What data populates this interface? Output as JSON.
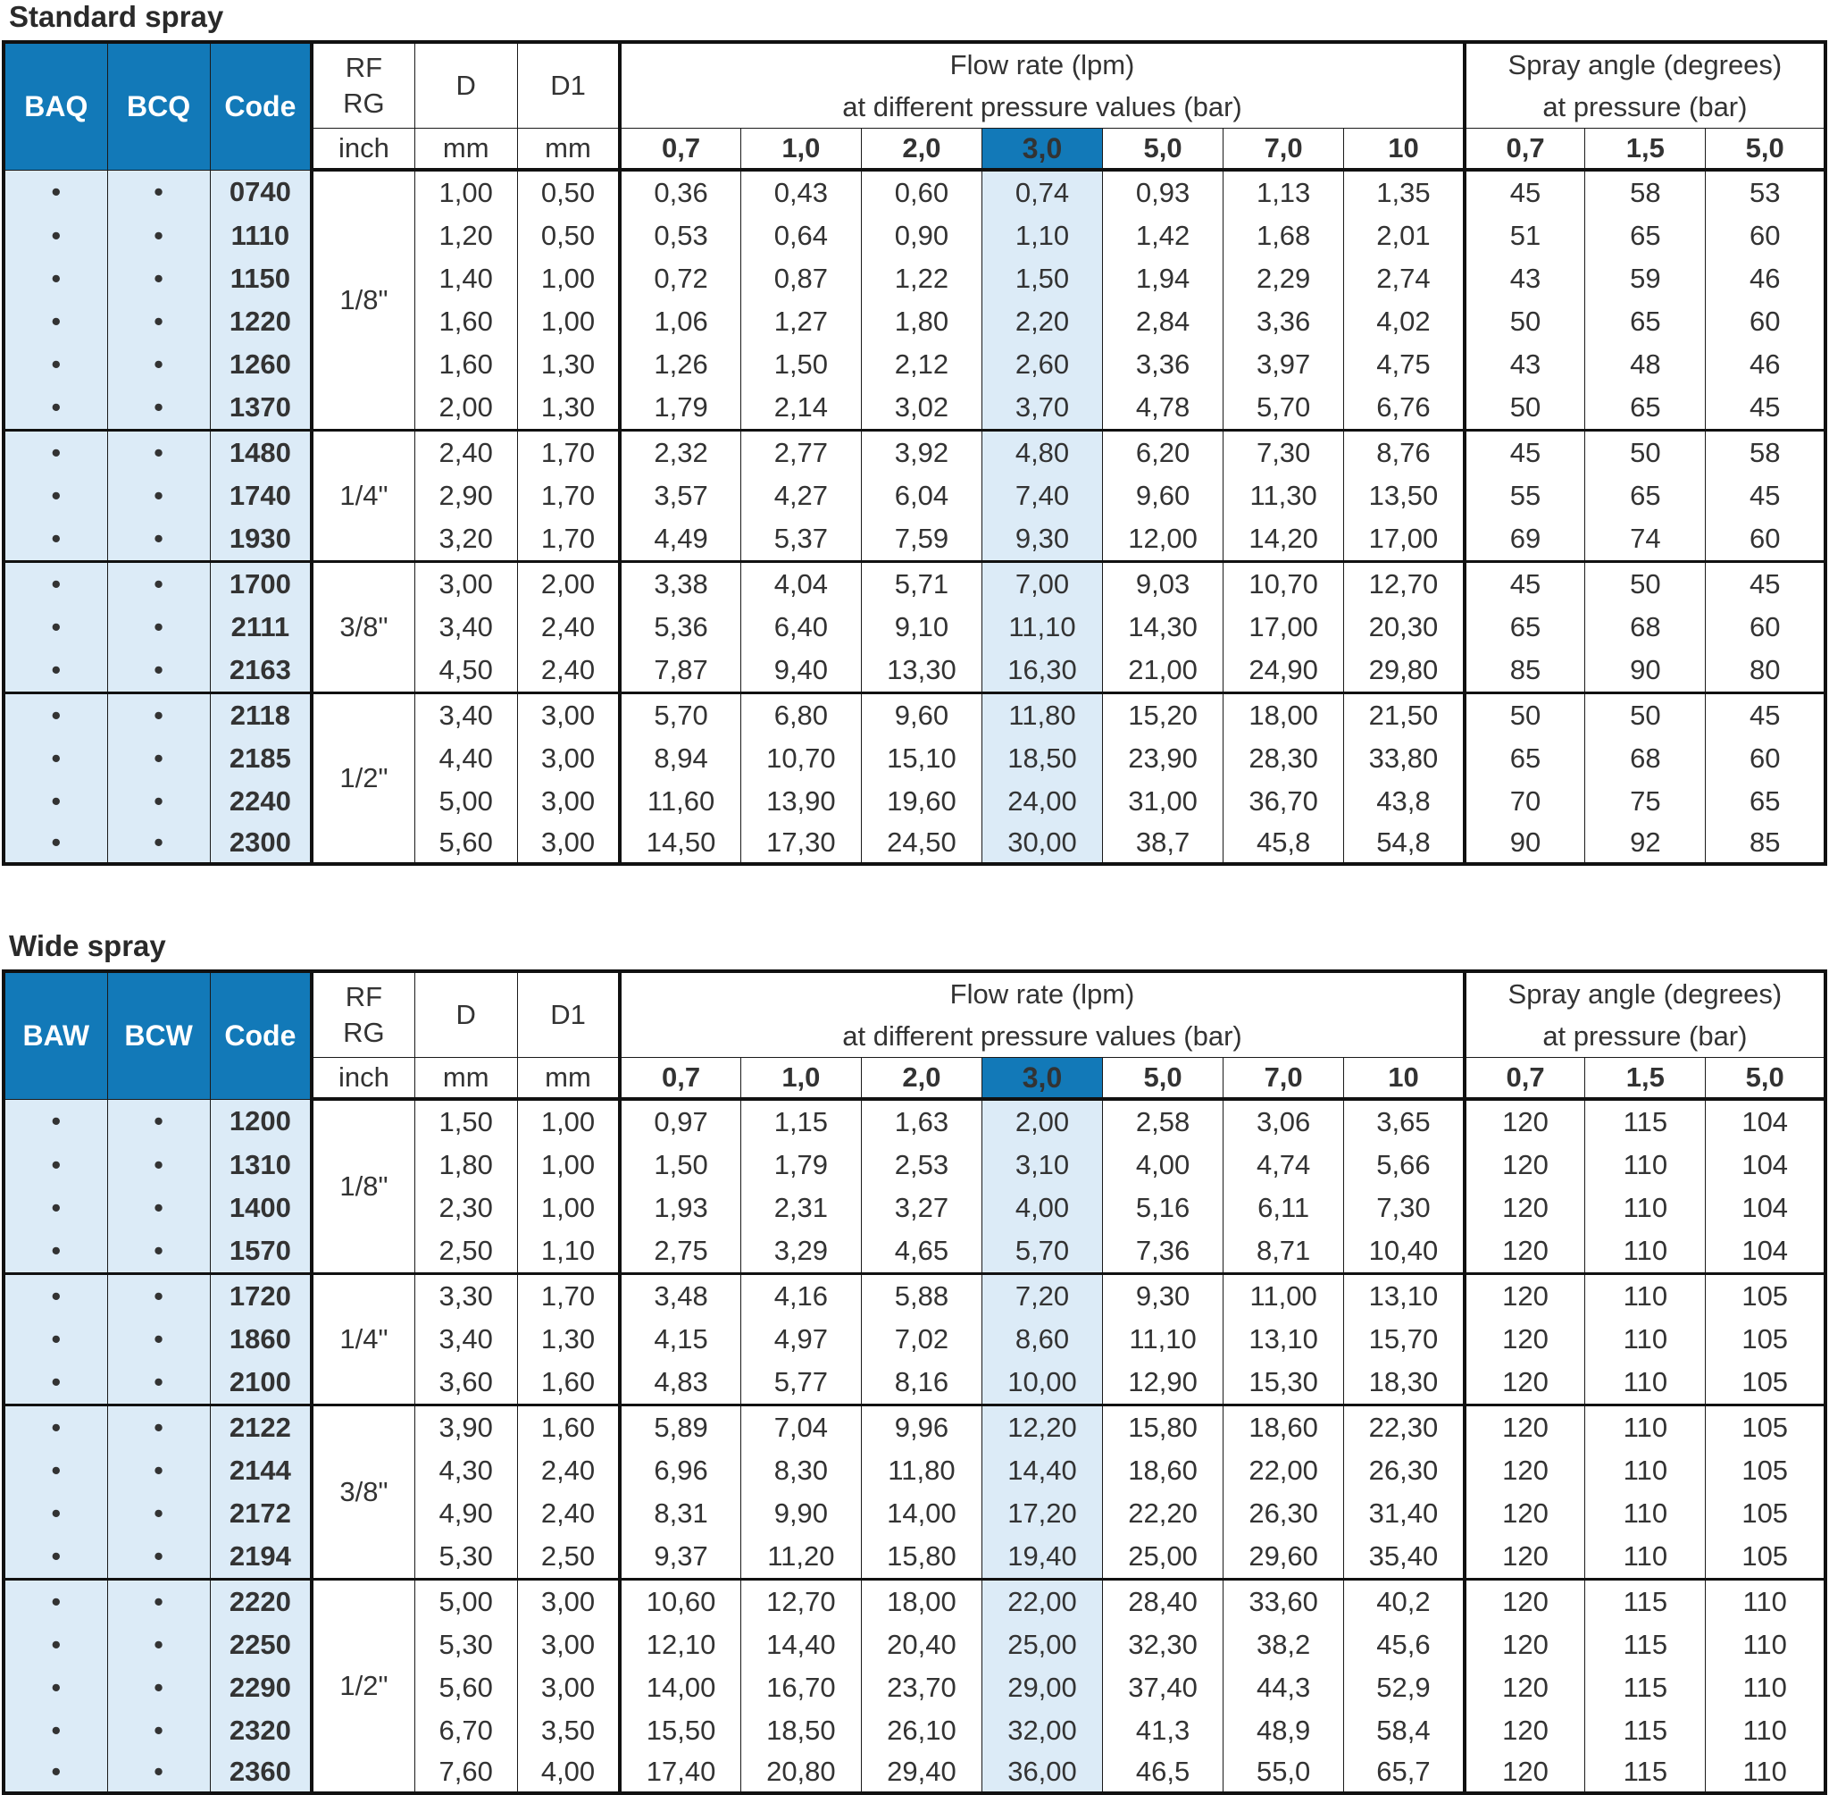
{
  "tables": [
    {
      "title": "Standard spray",
      "col1": "BAQ",
      "col2": "BCQ",
      "code_label": "Code",
      "rf_label_1": "RF",
      "rf_label_2": "RG",
      "rf_unit": "inch",
      "d_label": "D",
      "d_unit": "mm",
      "d1_label": "D1",
      "d1_unit": "mm",
      "flow_label_1": "Flow rate (lpm)",
      "flow_label_2": "at different pressure values (bar)",
      "flow_pressures": [
        "0,7",
        "1,0",
        "2,0",
        "3,0",
        "5,0",
        "7,0",
        "10"
      ],
      "angle_label_1": "Spray angle (degrees)",
      "angle_label_2": "at pressure (bar)",
      "angle_pressures": [
        "0,7",
        "1,5",
        "5,0"
      ],
      "groups": [
        {
          "size": "1/8\"",
          "rows": [
            {
              "a": "•",
              "b": "•",
              "code": "0740",
              "d": "1,00",
              "d1": "0,50",
              "flow": [
                "0,36",
                "0,43",
                "0,60",
                "0,74",
                "0,93",
                "1,13",
                "1,35"
              ],
              "angle": [
                "45",
                "58",
                "53"
              ]
            },
            {
              "a": "•",
              "b": "•",
              "code": "1110",
              "d": "1,20",
              "d1": "0,50",
              "flow": [
                "0,53",
                "0,64",
                "0,90",
                "1,10",
                "1,42",
                "1,68",
                "2,01"
              ],
              "angle": [
                "51",
                "65",
                "60"
              ]
            },
            {
              "a": "•",
              "b": "•",
              "code": "1150",
              "d": "1,40",
              "d1": "1,00",
              "flow": [
                "0,72",
                "0,87",
                "1,22",
                "1,50",
                "1,94",
                "2,29",
                "2,74"
              ],
              "angle": [
                "43",
                "59",
                "46"
              ]
            },
            {
              "a": "•",
              "b": "•",
              "code": "1220",
              "d": "1,60",
              "d1": "1,00",
              "flow": [
                "1,06",
                "1,27",
                "1,80",
                "2,20",
                "2,84",
                "3,36",
                "4,02"
              ],
              "angle": [
                "50",
                "65",
                "60"
              ]
            },
            {
              "a": "•",
              "b": "•",
              "code": "1260",
              "d": "1,60",
              "d1": "1,30",
              "flow": [
                "1,26",
                "1,50",
                "2,12",
                "2,60",
                "3,36",
                "3,97",
                "4,75"
              ],
              "angle": [
                "43",
                "48",
                "46"
              ]
            },
            {
              "a": "•",
              "b": "•",
              "code": "1370",
              "d": "2,00",
              "d1": "1,30",
              "flow": [
                "1,79",
                "2,14",
                "3,02",
                "3,70",
                "4,78",
                "5,70",
                "6,76"
              ],
              "angle": [
                "50",
                "65",
                "45"
              ]
            }
          ]
        },
        {
          "size": "1/4\"",
          "rows": [
            {
              "a": "•",
              "b": "•",
              "code": "1480",
              "d": "2,40",
              "d1": "1,70",
              "flow": [
                "2,32",
                "2,77",
                "3,92",
                "4,80",
                "6,20",
                "7,30",
                "8,76"
              ],
              "angle": [
                "45",
                "50",
                "58"
              ]
            },
            {
              "a": "•",
              "b": "•",
              "code": "1740",
              "d": "2,90",
              "d1": "1,70",
              "flow": [
                "3,57",
                "4,27",
                "6,04",
                "7,40",
                "9,60",
                "11,30",
                "13,50"
              ],
              "angle": [
                "55",
                "65",
                "45"
              ]
            },
            {
              "a": "•",
              "b": "•",
              "code": "1930",
              "d": "3,20",
              "d1": "1,70",
              "flow": [
                "4,49",
                "5,37",
                "7,59",
                "9,30",
                "12,00",
                "14,20",
                "17,00"
              ],
              "angle": [
                "69",
                "74",
                "60"
              ]
            }
          ]
        },
        {
          "size": "3/8\"",
          "rows": [
            {
              "a": "•",
              "b": "•",
              "code": "1700",
              "d": "3,00",
              "d1": "2,00",
              "flow": [
                "3,38",
                "4,04",
                "5,71",
                "7,00",
                "9,03",
                "10,70",
                "12,70"
              ],
              "angle": [
                "45",
                "50",
                "45"
              ]
            },
            {
              "a": "•",
              "b": "•",
              "code": "2111",
              "d": "3,40",
              "d1": "2,40",
              "flow": [
                "5,36",
                "6,40",
                "9,10",
                "11,10",
                "14,30",
                "17,00",
                "20,30"
              ],
              "angle": [
                "65",
                "68",
                "60"
              ]
            },
            {
              "a": "•",
              "b": "•",
              "code": "2163",
              "d": "4,50",
              "d1": "2,40",
              "flow": [
                "7,87",
                "9,40",
                "13,30",
                "16,30",
                "21,00",
                "24,90",
                "29,80"
              ],
              "angle": [
                "85",
                "90",
                "80"
              ]
            }
          ]
        },
        {
          "size": "1/2\"",
          "rows": [
            {
              "a": "•",
              "b": "•",
              "code": "2118",
              "d": "3,40",
              "d1": "3,00",
              "flow": [
                "5,70",
                "6,80",
                "9,60",
                "11,80",
                "15,20",
                "18,00",
                "21,50"
              ],
              "angle": [
                "50",
                "50",
                "45"
              ]
            },
            {
              "a": "•",
              "b": "•",
              "code": "2185",
              "d": "4,40",
              "d1": "3,00",
              "flow": [
                "8,94",
                "10,70",
                "15,10",
                "18,50",
                "23,90",
                "28,30",
                "33,80"
              ],
              "angle": [
                "65",
                "68",
                "60"
              ]
            },
            {
              "a": "•",
              "b": "•",
              "code": "2240",
              "d": "5,00",
              "d1": "3,00",
              "flow": [
                "11,60",
                "13,90",
                "19,60",
                "24,00",
                "31,00",
                "36,70",
                "43,8"
              ],
              "angle": [
                "70",
                "75",
                "65"
              ]
            },
            {
              "a": "•",
              "b": "•",
              "code": "2300",
              "d": "5,60",
              "d1": "3,00",
              "flow": [
                "14,50",
                "17,30",
                "24,50",
                "30,00",
                "38,7",
                "45,8",
                "54,8"
              ],
              "angle": [
                "90",
                "92",
                "85"
              ]
            }
          ]
        }
      ]
    },
    {
      "title": "Wide spray",
      "col1": "BAW",
      "col2": "BCW",
      "code_label": "Code",
      "rf_label_1": "RF",
      "rf_label_2": "RG",
      "rf_unit": "inch",
      "d_label": "D",
      "d_unit": "mm",
      "d1_label": "D1",
      "d1_unit": "mm",
      "flow_label_1": "Flow rate (lpm)",
      "flow_label_2": "at different pressure values (bar)",
      "flow_pressures": [
        "0,7",
        "1,0",
        "2,0",
        "3,0",
        "5,0",
        "7,0",
        "10"
      ],
      "angle_label_1": "Spray angle (degrees)",
      "angle_label_2": "at pressure (bar)",
      "angle_pressures": [
        "0,7",
        "1,5",
        "5,0"
      ],
      "groups": [
        {
          "size": "1/8\"",
          "rows": [
            {
              "a": "•",
              "b": "•",
              "code": "1200",
              "d": "1,50",
              "d1": "1,00",
              "flow": [
                "0,97",
                "1,15",
                "1,63",
                "2,00",
                "2,58",
                "3,06",
                "3,65"
              ],
              "angle": [
                "120",
                "115",
                "104"
              ]
            },
            {
              "a": "•",
              "b": "•",
              "code": "1310",
              "d": "1,80",
              "d1": "1,00",
              "flow": [
                "1,50",
                "1,79",
                "2,53",
                "3,10",
                "4,00",
                "4,74",
                "5,66"
              ],
              "angle": [
                "120",
                "110",
                "104"
              ]
            },
            {
              "a": "•",
              "b": "•",
              "code": "1400",
              "d": "2,30",
              "d1": "1,00",
              "flow": [
                "1,93",
                "2,31",
                "3,27",
                "4,00",
                "5,16",
                "6,11",
                "7,30"
              ],
              "angle": [
                "120",
                "110",
                "104"
              ]
            },
            {
              "a": "•",
              "b": "•",
              "code": "1570",
              "d": "2,50",
              "d1": "1,10",
              "flow": [
                "2,75",
                "3,29",
                "4,65",
                "5,70",
                "7,36",
                "8,71",
                "10,40"
              ],
              "angle": [
                "120",
                "110",
                "104"
              ]
            }
          ]
        },
        {
          "size": "1/4\"",
          "rows": [
            {
              "a": "•",
              "b": "•",
              "code": "1720",
              "d": "3,30",
              "d1": "1,70",
              "flow": [
                "3,48",
                "4,16",
                "5,88",
                "7,20",
                "9,30",
                "11,00",
                "13,10"
              ],
              "angle": [
                "120",
                "110",
                "105"
              ]
            },
            {
              "a": "•",
              "b": "•",
              "code": "1860",
              "d": "3,40",
              "d1": "1,30",
              "flow": [
                "4,15",
                "4,97",
                "7,02",
                "8,60",
                "11,10",
                "13,10",
                "15,70"
              ],
              "angle": [
                "120",
                "110",
                "105"
              ]
            },
            {
              "a": "•",
              "b": "•",
              "code": "2100",
              "d": "3,60",
              "d1": "1,60",
              "flow": [
                "4,83",
                "5,77",
                "8,16",
                "10,00",
                "12,90",
                "15,30",
                "18,30"
              ],
              "angle": [
                "120",
                "110",
                "105"
              ]
            }
          ]
        },
        {
          "size": "3/8\"",
          "rows": [
            {
              "a": "•",
              "b": "•",
              "code": "2122",
              "d": "3,90",
              "d1": "1,60",
              "flow": [
                "5,89",
                "7,04",
                "9,96",
                "12,20",
                "15,80",
                "18,60",
                "22,30"
              ],
              "angle": [
                "120",
                "110",
                "105"
              ]
            },
            {
              "a": "•",
              "b": "•",
              "code": "2144",
              "d": "4,30",
              "d1": "2,40",
              "flow": [
                "6,96",
                "8,30",
                "11,80",
                "14,40",
                "18,60",
                "22,00",
                "26,30"
              ],
              "angle": [
                "120",
                "110",
                "105"
              ]
            },
            {
              "a": "•",
              "b": "•",
              "code": "2172",
              "d": "4,90",
              "d1": "2,40",
              "flow": [
                "8,31",
                "9,90",
                "14,00",
                "17,20",
                "22,20",
                "26,30",
                "31,40"
              ],
              "angle": [
                "120",
                "110",
                "105"
              ]
            },
            {
              "a": "•",
              "b": "•",
              "code": "2194",
              "d": "5,30",
              "d1": "2,50",
              "flow": [
                "9,37",
                "11,20",
                "15,80",
                "19,40",
                "25,00",
                "29,60",
                "35,40"
              ],
              "angle": [
                "120",
                "110",
                "105"
              ]
            }
          ]
        },
        {
          "size": "1/2\"",
          "rows": [
            {
              "a": "•",
              "b": "•",
              "code": "2220",
              "d": "5,00",
              "d1": "3,00",
              "flow": [
                "10,60",
                "12,70",
                "18,00",
                "22,00",
                "28,40",
                "33,60",
                "40,2"
              ],
              "angle": [
                "120",
                "115",
                "110"
              ]
            },
            {
              "a": "•",
              "b": "•",
              "code": "2250",
              "d": "5,30",
              "d1": "3,00",
              "flow": [
                "12,10",
                "14,40",
                "20,40",
                "25,00",
                "32,30",
                "38,2",
                "45,6"
              ],
              "angle": [
                "120",
                "115",
                "110"
              ]
            },
            {
              "a": "•",
              "b": "•",
              "code": "2290",
              "d": "5,60",
              "d1": "3,00",
              "flow": [
                "14,00",
                "16,70",
                "23,70",
                "29,00",
                "37,40",
                "44,3",
                "52,9"
              ],
              "angle": [
                "120",
                "115",
                "110"
              ]
            },
            {
              "a": "•",
              "b": "•",
              "code": "2320",
              "d": "6,70",
              "d1": "3,50",
              "flow": [
                "15,50",
                "18,50",
                "26,10",
                "32,00",
                "41,3",
                "48,9",
                "58,4"
              ],
              "angle": [
                "120",
                "115",
                "110"
              ]
            },
            {
              "a": "•",
              "b": "•",
              "code": "2360",
              "d": "7,60",
              "d1": "4,00",
              "flow": [
                "17,40",
                "20,80",
                "29,40",
                "36,00",
                "46,5",
                "55,0",
                "65,7"
              ],
              "angle": [
                "120",
                "115",
                "110"
              ]
            }
          ]
        }
      ]
    }
  ],
  "colors": {
    "header_blue": "#1279b8",
    "highlight_light": "#dcebf7",
    "border": "#111111"
  },
  "highlight_pressure_index": 3
}
